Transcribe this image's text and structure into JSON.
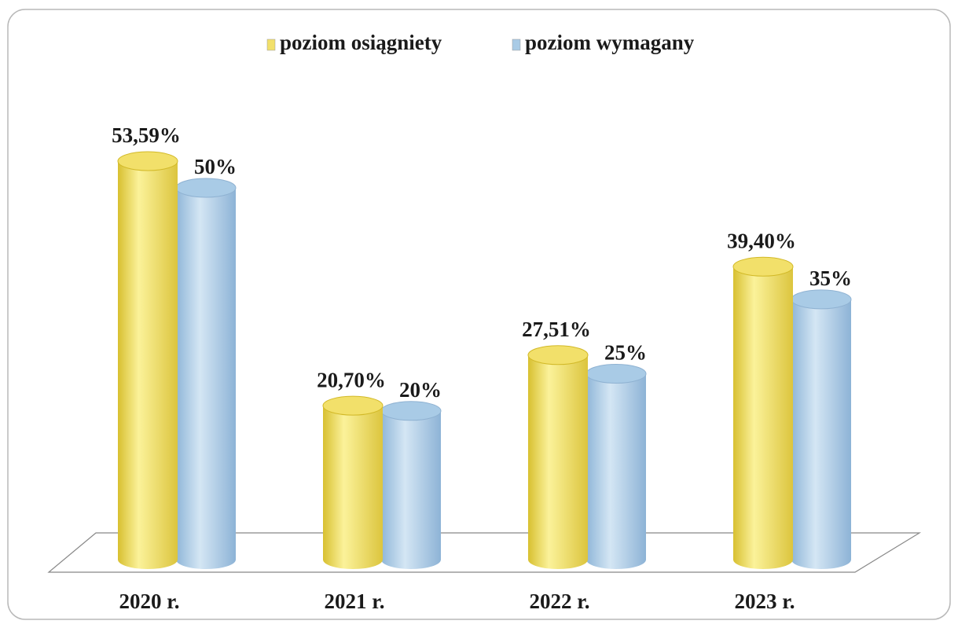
{
  "chart_data": {
    "type": "bar",
    "categories": [
      "2020 r.",
      "2021 r.",
      "2022 r.",
      "2023 r."
    ],
    "series": [
      {
        "name": "poziom osiągniety",
        "color": "#f2e06a",
        "values": [
          53.59,
          20.7,
          27.51,
          39.4
        ],
        "value_labels": [
          "53,59%",
          "20,70%",
          "27,51%",
          "39,40%"
        ]
      },
      {
        "name": "poziom wymagany",
        "color": "#a9cbe6",
        "values": [
          50,
          20,
          25,
          35
        ],
        "value_labels": [
          "50%",
          "20%",
          "25%",
          "35%"
        ]
      }
    ]
  }
}
